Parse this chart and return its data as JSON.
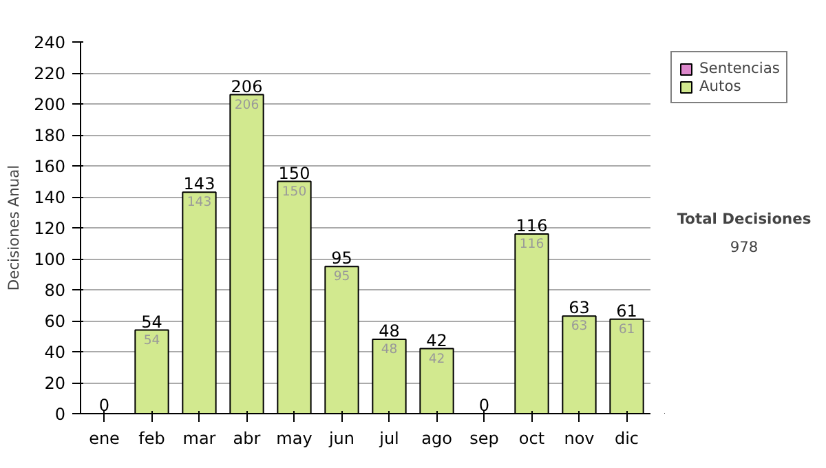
{
  "chart_data": {
    "type": "bar",
    "stacked": true,
    "ylabel": "Decisiones Anual",
    "categories": [
      "ene",
      "feb",
      "mar",
      "abr",
      "may",
      "jun",
      "jul",
      "ago",
      "sep",
      "oct",
      "nov",
      "dic"
    ],
    "series": [
      {
        "name": "Sentencias",
        "color": "#dd88cc",
        "values": [
          0,
          0,
          0,
          0,
          0,
          0,
          0,
          0,
          0,
          0,
          0,
          0
        ]
      },
      {
        "name": "Autos",
        "color": "#d2e98f",
        "values": [
          0,
          54,
          143,
          206,
          150,
          95,
          48,
          42,
          0,
          116,
          63,
          61
        ],
        "value_labels": [
          null,
          "54",
          "143",
          "206",
          "150",
          "95",
          "48",
          "42",
          null,
          "116",
          "63",
          "61"
        ]
      }
    ],
    "totals": [
      "0",
      "54",
      "143",
      "206",
      "150",
      "95",
      "48",
      "42",
      "0",
      "116",
      "63",
      "61"
    ],
    "ylim": [
      0,
      240
    ],
    "yticks": [
      0,
      20,
      40,
      60,
      80,
      100,
      120,
      140,
      160,
      180,
      200,
      220,
      240
    ],
    "grid": "y",
    "legend": "right",
    "annotations": [
      "Total Decisiones",
      "978"
    ]
  }
}
